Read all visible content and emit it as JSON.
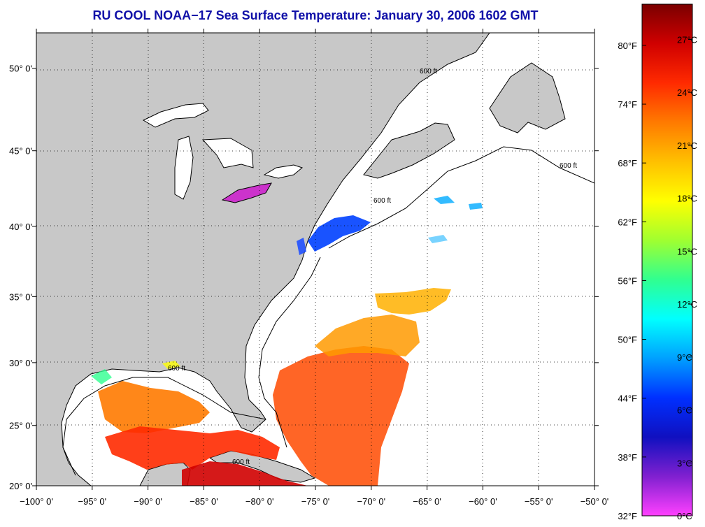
{
  "title": "RU COOL  NOAA−17  Sea Surface Temperature:  January 30, 2006 1602 GMT",
  "map": {
    "lon_range": [
      -100,
      -50
    ],
    "lat_range": [
      20,
      52
    ],
    "lon_ticks": [
      "−100° 0'",
      "−95° 0'",
      "−90° 0'",
      "−85° 0'",
      "−80° 0'",
      "−75° 0'",
      "−70° 0'",
      "−65° 0'",
      "−60° 0'",
      "−55° 0'",
      "−50° 0'"
    ],
    "lat_ticks": [
      "20° 0'",
      "25° 0'",
      "30° 0'",
      "35° 0'",
      "40° 0'",
      "45° 0'",
      "50° 0'"
    ],
    "contour_label": "600 ft",
    "land_color": "#c8c8c8",
    "ocean_color": "#ffffff"
  },
  "colorbar": {
    "fahrenheit_labels": [
      "80°F",
      "74°F",
      "68°F",
      "62°F",
      "56°F",
      "50°F",
      "44°F",
      "38°F",
      "32°F"
    ],
    "celsius_labels": [
      "27°C",
      "24°C",
      "21°C",
      "18°C",
      "15°C",
      "12°C",
      "9°C",
      "6°C",
      "3°C",
      "0°C"
    ],
    "colors": [
      "#7a0000",
      "#d00000",
      "#ff2a00",
      "#ff7a00",
      "#ffc000",
      "#ffff00",
      "#a0ff30",
      "#30ff90",
      "#00ffff",
      "#00a0ff",
      "#0030ff",
      "#1010c0",
      "#8020d0",
      "#ff40ff"
    ]
  }
}
